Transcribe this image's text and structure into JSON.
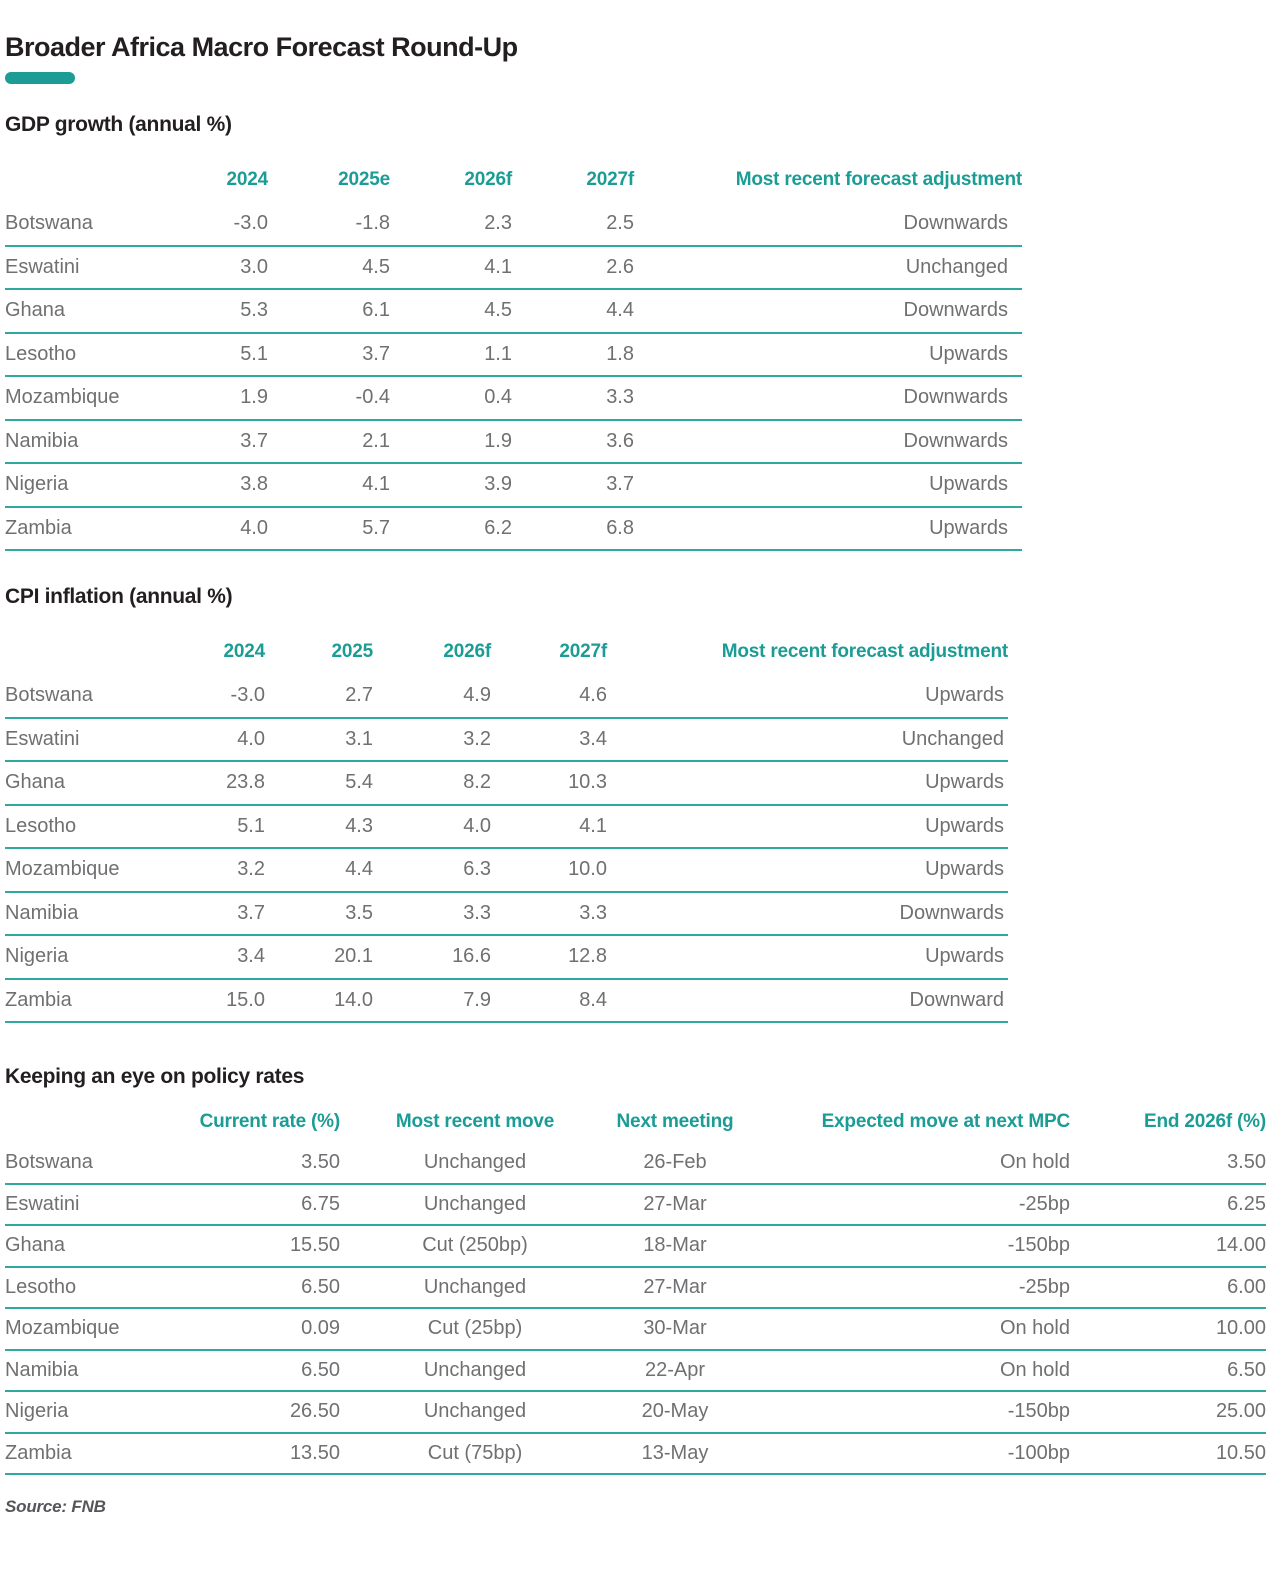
{
  "title": "Broader Africa Macro Forecast Round-Up",
  "source": "Source: FNB",
  "colors": {
    "accent_teal": "#1b9c95",
    "row_rule_teal": "#2fa8a0",
    "heading_text": "#231f20",
    "body_text": "#6f7072"
  },
  "tables": [
    {
      "heading": "GDP growth (annual %)",
      "columns": [
        {
          "label": "",
          "align": "left"
        },
        {
          "label": "2024",
          "align": "right"
        },
        {
          "label": "2025e",
          "align": "right"
        },
        {
          "label": "2026f",
          "align": "right"
        },
        {
          "label": "2027f",
          "align": "right"
        },
        {
          "label": "Most recent forecast adjustment",
          "align": "right"
        }
      ],
      "rows": [
        [
          "Botswana",
          "-3.0",
          "-1.8",
          "2.3",
          "2.5",
          "Downwards"
        ],
        [
          "Eswatini",
          "3.0",
          "4.5",
          "4.1",
          "2.6",
          "Unchanged"
        ],
        [
          "Ghana",
          "5.3",
          "6.1",
          "4.5",
          "4.4",
          "Downwards"
        ],
        [
          "Lesotho",
          "5.1",
          "3.7",
          "1.1",
          "1.8",
          "Upwards"
        ],
        [
          "Mozambique",
          "1.9",
          "-0.4",
          "0.4",
          "3.3",
          "Downwards"
        ],
        [
          "Namibia",
          "3.7",
          "2.1",
          "1.9",
          "3.6",
          "Downwards"
        ],
        [
          "Nigeria",
          "3.8",
          "4.1",
          "3.9",
          "3.7",
          "Upwards"
        ],
        [
          "Zambia",
          "4.0",
          "5.7",
          "6.2",
          "6.8",
          "Upwards"
        ]
      ]
    },
    {
      "heading": "CPI inflation (annual %)",
      "columns": [
        {
          "label": "",
          "align": "left"
        },
        {
          "label": "2024",
          "align": "right"
        },
        {
          "label": "2025",
          "align": "right"
        },
        {
          "label": "2026f",
          "align": "right"
        },
        {
          "label": "2027f",
          "align": "right"
        },
        {
          "label": "Most recent forecast adjustment",
          "align": "right"
        }
      ],
      "rows": [
        [
          "Botswana",
          "-3.0",
          "2.7",
          "4.9",
          "4.6",
          "Upwards"
        ],
        [
          "Eswatini",
          "4.0",
          "3.1",
          "3.2",
          "3.4",
          "Unchanged"
        ],
        [
          "Ghana",
          "23.8",
          "5.4",
          "8.2",
          "10.3",
          "Upwards"
        ],
        [
          "Lesotho",
          "5.1",
          "4.3",
          "4.0",
          "4.1",
          "Upwards"
        ],
        [
          "Mozambique",
          "3.2",
          "4.4",
          "6.3",
          "10.0",
          "Upwards"
        ],
        [
          "Namibia",
          "3.7",
          "3.5",
          "3.3",
          "3.3",
          "Downwards"
        ],
        [
          "Nigeria",
          "3.4",
          "20.1",
          "16.6",
          "12.8",
          "Upwards"
        ],
        [
          "Zambia",
          "15.0",
          "14.0",
          "7.9",
          "8.4",
          "Downward"
        ]
      ]
    },
    {
      "heading": "Keeping an eye on policy rates",
      "columns": [
        {
          "label": "",
          "align": "left"
        },
        {
          "label": "Current rate (%)",
          "align": "right"
        },
        {
          "label": "Most recent move",
          "align": "center"
        },
        {
          "label": "Next meeting",
          "align": "center"
        },
        {
          "label": "Expected move at next MPC",
          "align": "right"
        },
        {
          "label": "End 2026f (%)",
          "align": "right"
        }
      ],
      "rows": [
        [
          "Botswana",
          "3.50",
          "Unchanged",
          "26-Feb",
          "On hold",
          "3.50"
        ],
        [
          "Eswatini",
          "6.75",
          "Unchanged",
          "27-Mar",
          "-25bp",
          "6.25"
        ],
        [
          "Ghana",
          "15.50",
          "Cut (250bp)",
          "18-Mar",
          "-150bp",
          "14.00"
        ],
        [
          "Lesotho",
          "6.50",
          "Unchanged",
          "27-Mar",
          "-25bp",
          "6.00"
        ],
        [
          "Mozambique",
          "0.09",
          "Cut (25bp)",
          "30-Mar",
          "On hold",
          "10.00"
        ],
        [
          "Namibia",
          "6.50",
          "Unchanged",
          "22-Apr",
          "On hold",
          "6.50"
        ],
        [
          "Nigeria",
          "26.50",
          "Unchanged",
          "20-May",
          "-150bp",
          "25.00"
        ],
        [
          "Zambia",
          "13.50",
          "Cut (75bp)",
          "13-May",
          "-100bp",
          "10.50"
        ]
      ]
    }
  ]
}
